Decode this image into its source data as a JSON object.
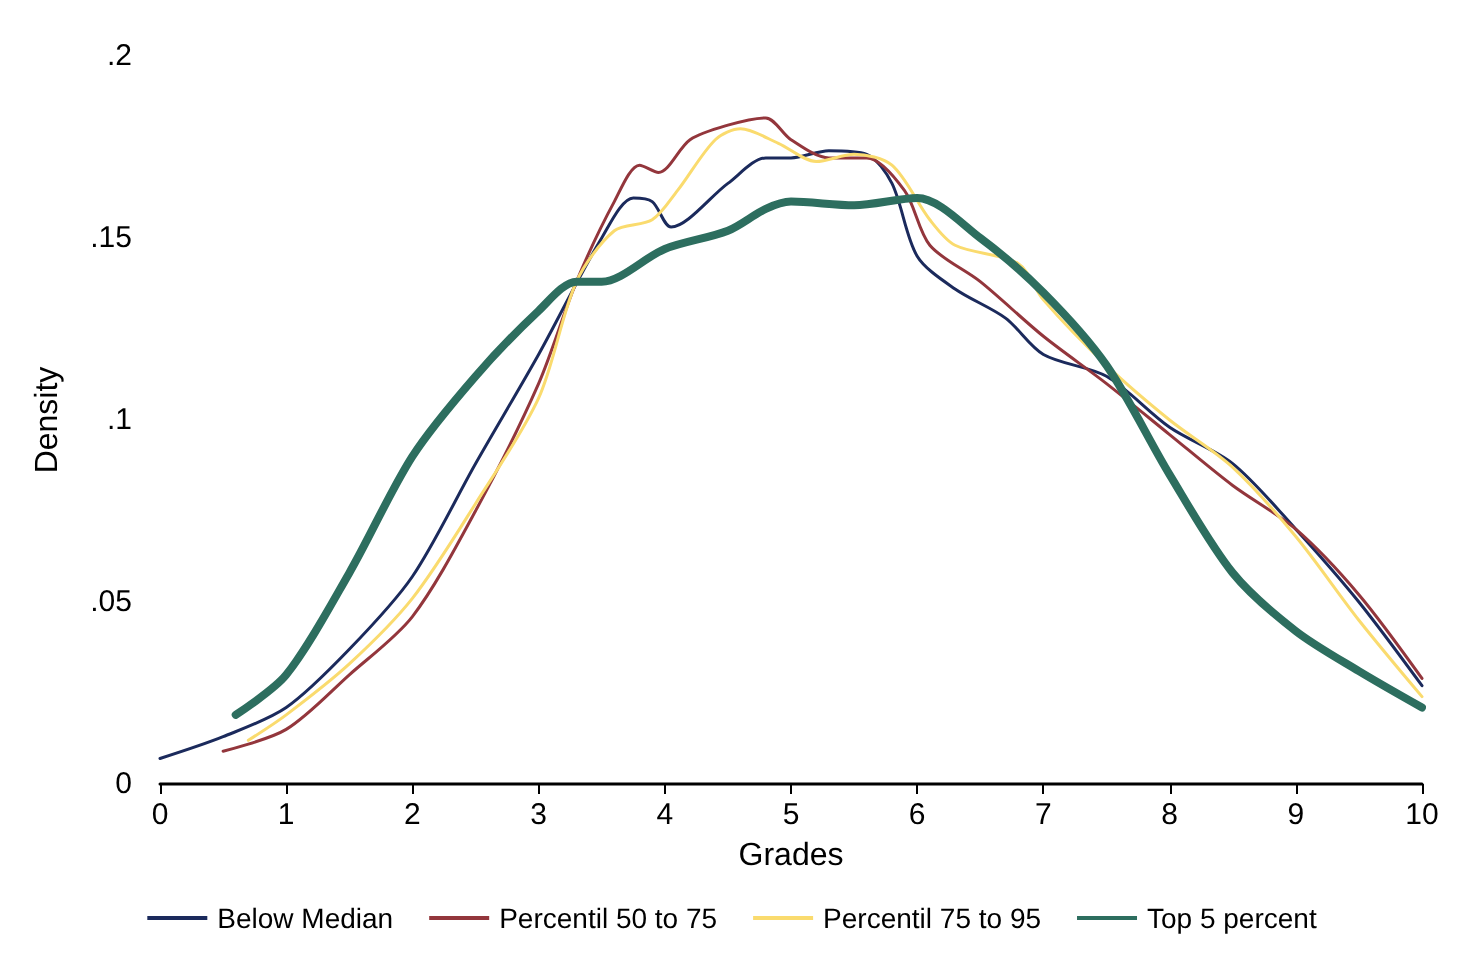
{
  "chart_data": {
    "type": "line",
    "xlabel": "Grades",
    "ylabel": "Density",
    "xlim": [
      0,
      10
    ],
    "ylim": [
      0,
      0.2
    ],
    "xticks": [
      0,
      1,
      2,
      3,
      4,
      5,
      6,
      7,
      8,
      9,
      10
    ],
    "yticks": [
      0,
      {
        "value": 0.05,
        "label": ".05"
      },
      {
        "value": 0.1,
        "label": ".1"
      },
      {
        "value": 0.15,
        "label": ".15"
      },
      {
        "value": 0.2,
        "label": ".2"
      }
    ],
    "grid": false,
    "legend": "bottom",
    "marker": "none",
    "line_style": "solid",
    "series": [
      {
        "name": "Below Median",
        "color": "#1b2a5c",
        "x": [
          0,
          0.5,
          1,
          1.5,
          2,
          2.5,
          3,
          3.5,
          3.75,
          3.9,
          4.05,
          4.5,
          4.8,
          5,
          5.3,
          5.6,
          5.8,
          6,
          6.3,
          6.7,
          7,
          7.5,
          8,
          8.5,
          9,
          9.5,
          10
        ],
        "values": [
          0.007,
          0.013,
          0.021,
          0.037,
          0.057,
          0.088,
          0.118,
          0.15,
          0.161,
          0.16,
          0.153,
          0.165,
          0.172,
          0.172,
          0.174,
          0.173,
          0.165,
          0.145,
          0.136,
          0.128,
          0.118,
          0.112,
          0.098,
          0.088,
          0.07,
          0.05,
          0.027
        ]
      },
      {
        "name": "Percentil 50 to 75",
        "color": "#93363c",
        "x": [
          0.5,
          1,
          1.5,
          2,
          2.5,
          3,
          3.3,
          3.6,
          3.8,
          3.95,
          4.2,
          4.5,
          4.8,
          5,
          5.3,
          5.6,
          5.9,
          6.1,
          6.5,
          7,
          7.5,
          8,
          8.5,
          9,
          9.5,
          10
        ],
        "values": [
          0.009,
          0.015,
          0.03,
          0.046,
          0.075,
          0.11,
          0.138,
          0.16,
          0.17,
          0.168,
          0.177,
          0.181,
          0.183,
          0.177,
          0.172,
          0.172,
          0.163,
          0.148,
          0.138,
          0.123,
          0.11,
          0.096,
          0.082,
          0.07,
          0.052,
          0.029
        ]
      },
      {
        "name": "Percentil 75 to 95",
        "color": "#fadb6e",
        "x": [
          0.7,
          1,
          1.5,
          2,
          2.5,
          3,
          3.3,
          3.6,
          3.9,
          4.1,
          4.4,
          4.6,
          4.9,
          5.2,
          5.5,
          5.8,
          6.1,
          6.3,
          6.8,
          7,
          7.5,
          8,
          8.5,
          9,
          9.5,
          10
        ],
        "values": [
          0.012,
          0.019,
          0.033,
          0.051,
          0.077,
          0.106,
          0.138,
          0.152,
          0.155,
          0.163,
          0.177,
          0.18,
          0.176,
          0.171,
          0.173,
          0.17,
          0.155,
          0.148,
          0.143,
          0.133,
          0.115,
          0.1,
          0.087,
          0.068,
          0.045,
          0.024
        ]
      },
      {
        "name": "Top 5 percent",
        "color": "#2d6e5f",
        "x": [
          0.6,
          1,
          1.5,
          2,
          2.5,
          3,
          3.3,
          3.5,
          4,
          4.5,
          4.8,
          5,
          5.5,
          6,
          6.5,
          7,
          7.5,
          8,
          8.5,
          9,
          9.5,
          10
        ],
        "values": [
          0.019,
          0.03,
          0.058,
          0.09,
          0.112,
          0.13,
          0.138,
          0.138,
          0.147,
          0.152,
          0.158,
          0.16,
          0.159,
          0.161,
          0.15,
          0.135,
          0.115,
          0.085,
          0.058,
          0.042,
          0.031,
          0.021
        ]
      }
    ]
  }
}
